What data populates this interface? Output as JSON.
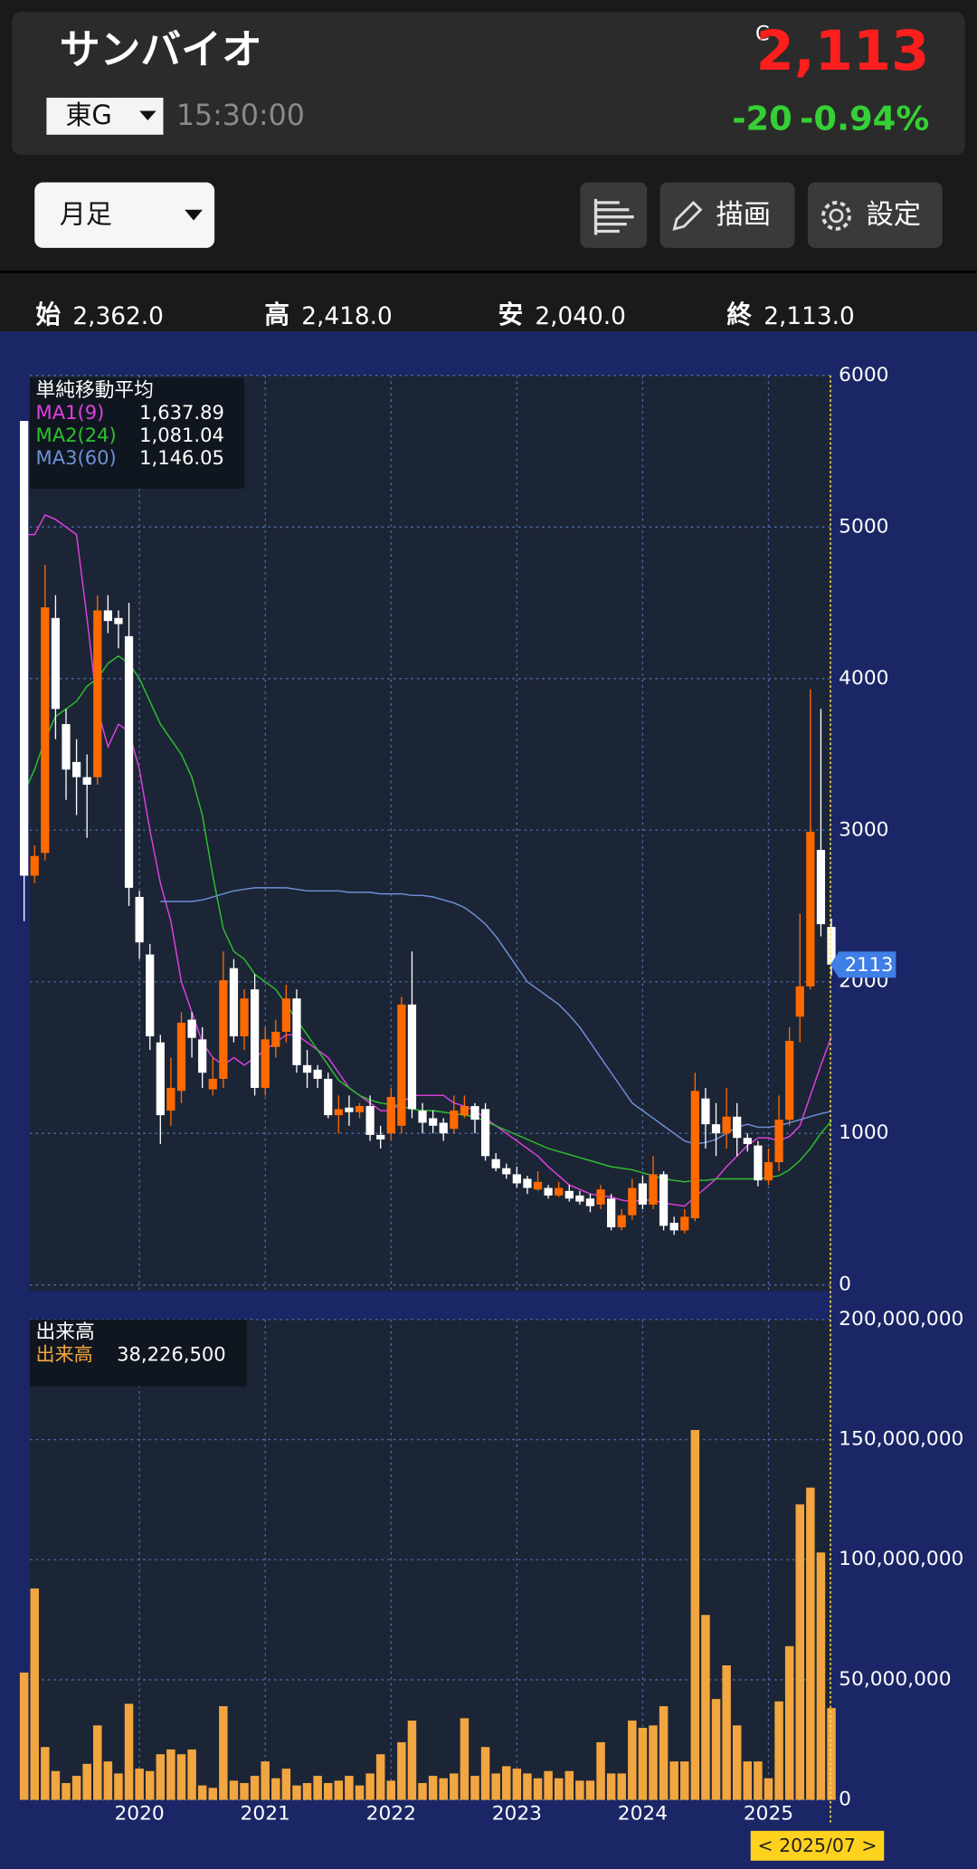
{
  "header": {
    "name": "サンバイオ",
    "market": "東G",
    "time": "15:30:00",
    "close_mark": "C",
    "price": "2,113",
    "change": "-20",
    "change_pct": "-0.94%"
  },
  "toolbar": {
    "period": "月足",
    "draw": "描画",
    "settings": "設定"
  },
  "ohlc": [
    {
      "label": "始",
      "value": "2,362.0"
    },
    {
      "label": "高",
      "value": "2,418.0"
    },
    {
      "label": "安",
      "value": "2,040.0"
    },
    {
      "label": "終",
      "value": "2,113.0"
    }
  ],
  "chart_data": [
    {
      "type": "candlestick",
      "legend_title": "単純移動平均",
      "up_color": "#ff6a00",
      "down_color": "#ffffff",
      "grid": true,
      "open": [
        5700,
        2700,
        2850,
        4400,
        3700,
        3450,
        3350,
        3350,
        4450,
        4400,
        4280,
        2560,
        2180,
        1600,
        1150,
        1280,
        1750,
        1620,
        1290,
        1360,
        2090,
        1640,
        1950,
        1300,
        1570,
        1670,
        1890,
        1450,
        1420,
        1360,
        1120,
        1170,
        1140,
        1180,
        990,
        1000,
        1050,
        1850,
        1150,
        1100,
        1070,
        1030,
        1120,
        1180,
        1160,
        830,
        770,
        730,
        700,
        630,
        640,
        590,
        620,
        590,
        570,
        530,
        570,
        380,
        460,
        670,
        530,
        730,
        410,
        360,
        440,
        1230,
        1060,
        1000,
        1110,
        970,
        920,
        690,
        810,
        1090,
        1770,
        1970,
        2870,
        2362
      ],
      "high": [
        5700,
        2900,
        4750,
        4550,
        3800,
        3600,
        3500,
        4550,
        4550,
        4450,
        4500,
        2600,
        2250,
        1650,
        1500,
        1800,
        1800,
        1700,
        1500,
        2200,
        2150,
        1950,
        2050,
        1700,
        1750,
        1980,
        1950,
        1550,
        1450,
        1400,
        1250,
        1250,
        1200,
        1250,
        1050,
        1300,
        1900,
        2200,
        1200,
        1150,
        1100,
        1250,
        1250,
        1200,
        1200,
        870,
        800,
        780,
        720,
        750,
        660,
        680,
        660,
        620,
        600,
        660,
        600,
        500,
        700,
        720,
        850,
        750,
        450,
        500,
        1400,
        1300,
        1200,
        1300,
        1200,
        1000,
        950,
        900,
        1250,
        1700,
        2450,
        3930,
        3800,
        2418
      ],
      "low": [
        2400,
        2650,
        2800,
        3600,
        3200,
        3100,
        2950,
        3300,
        4300,
        4200,
        2500,
        2150,
        1550,
        930,
        1050,
        1200,
        1500,
        1300,
        1250,
        1300,
        1600,
        1550,
        1250,
        1250,
        1500,
        1600,
        1400,
        1300,
        1300,
        1100,
        1000,
        1050,
        1100,
        950,
        900,
        950,
        1000,
        1100,
        1000,
        1000,
        950,
        1000,
        1100,
        1000,
        820,
        750,
        700,
        640,
        600,
        620,
        570,
        580,
        550,
        530,
        480,
        500,
        360,
        360,
        430,
        500,
        500,
        360,
        330,
        340,
        420,
        900,
        850,
        900,
        850,
        880,
        650,
        660,
        750,
        1050,
        1600,
        1950,
        2300,
        2040
      ],
      "close": [
        2700,
        2830,
        4470,
        3800,
        3400,
        3350,
        3300,
        4450,
        4380,
        4360,
        2620,
        2260,
        1640,
        1120,
        1300,
        1730,
        1630,
        1400,
        1360,
        2010,
        1640,
        1890,
        1300,
        1620,
        1670,
        1890,
        1450,
        1400,
        1360,
        1120,
        1160,
        1140,
        1180,
        990,
        960,
        1240,
        1850,
        1160,
        1070,
        1050,
        1000,
        1150,
        1180,
        1090,
        850,
        770,
        730,
        670,
        640,
        680,
        590,
        640,
        570,
        550,
        520,
        630,
        380,
        460,
        640,
        530,
        730,
        390,
        360,
        450,
        1280,
        1060,
        1000,
        1110,
        970,
        930,
        690,
        810,
        1090,
        1610,
        1970,
        2990,
        2380,
        2113
      ],
      "series": [
        {
          "name": "MA1(9)",
          "color": "#e040e0",
          "last_label": "1,637.89",
          "values": [
            4950,
            4950,
            5080,
            5050,
            5000,
            4950,
            4400,
            3800,
            3550,
            3700,
            3650,
            3400,
            3000,
            2650,
            2400,
            2000,
            1800,
            1600,
            1500,
            1450,
            1500,
            1450,
            1500,
            1550,
            1600,
            1650,
            1650,
            1600,
            1550,
            1500,
            1400,
            1300,
            1250,
            1200,
            1150,
            1150,
            1200,
            1250,
            1250,
            1250,
            1250,
            1200,
            1180,
            1150,
            1100,
            1050,
            1000,
            950,
            900,
            850,
            780,
            720,
            660,
            630,
            600,
            590,
            580,
            560,
            550,
            560,
            560,
            540,
            530,
            520,
            580,
            640,
            700,
            780,
            850,
            920,
            970,
            970,
            950,
            980,
            1050,
            1250,
            1450,
            1637.89
          ]
        },
        {
          "name": "MA2(24)",
          "color": "#2ec02e",
          "last_label": "1,081.04",
          "values": [
            3250,
            3400,
            3600,
            3750,
            3800,
            3850,
            3950,
            4000,
            4100,
            4150,
            4100,
            4000,
            3850,
            3700,
            3600,
            3500,
            3350,
            3100,
            2700,
            2350,
            2200,
            2150,
            2050,
            2000,
            1950,
            1850,
            1750,
            1650,
            1550,
            1450,
            1350,
            1300,
            1250,
            1220,
            1200,
            1190,
            1180,
            1160,
            1150,
            1150,
            1140,
            1130,
            1120,
            1110,
            1080,
            1050,
            1020,
            990,
            960,
            930,
            900,
            880,
            860,
            840,
            820,
            800,
            780,
            770,
            760,
            740,
            720,
            700,
            690,
            680,
            690,
            690,
            700,
            700,
            700,
            700,
            700,
            710,
            720,
            760,
            820,
            900,
            1000,
            1081.04
          ]
        },
        {
          "name": "MA3(60)",
          "color": "#6f8fd8",
          "last_label": "1,146.05",
          "values": [
            null,
            null,
            null,
            null,
            null,
            null,
            null,
            null,
            null,
            null,
            null,
            null,
            null,
            2530,
            2530,
            2530,
            2530,
            2540,
            2560,
            2580,
            2600,
            2610,
            2620,
            2620,
            2620,
            2620,
            2610,
            2600,
            2600,
            2600,
            2600,
            2590,
            2590,
            2590,
            2580,
            2580,
            2580,
            2570,
            2570,
            2560,
            2540,
            2520,
            2490,
            2440,
            2380,
            2300,
            2200,
            2100,
            2000,
            1950,
            1900,
            1850,
            1780,
            1700,
            1600,
            1500,
            1400,
            1300,
            1200,
            1150,
            1100,
            1050,
            1000,
            950,
            930,
            940,
            960,
            1000,
            1040,
            1060,
            1040,
            1040,
            1050,
            1070,
            1090,
            1110,
            1130,
            1146.05
          ]
        }
      ],
      "ylim": [
        0,
        6000
      ],
      "yticks": [
        0,
        1000,
        2000,
        3000,
        4000,
        5000,
        6000
      ],
      "current_price": 2113
    },
    {
      "type": "bar",
      "legend_title": "出来高",
      "grid": true,
      "series": [
        {
          "name": "出来高",
          "color": "#f2a640",
          "last_label": "38,226,500",
          "values": [
            53000000,
            88000000,
            22000000,
            12000000,
            7000000,
            10000000,
            15000000,
            31000000,
            16000000,
            11000000,
            40000000,
            13000000,
            12000000,
            19000000,
            21000000,
            19000000,
            21000000,
            6000000,
            5000000,
            39000000,
            8000000,
            7000000,
            10000000,
            16000000,
            9000000,
            13000000,
            6000000,
            7000000,
            10000000,
            7000000,
            8000000,
            10000000,
            6000000,
            11000000,
            19000000,
            8000000,
            24000000,
            33000000,
            7000000,
            10000000,
            9000000,
            11000000,
            34000000,
            10000000,
            22000000,
            11000000,
            14000000,
            13000000,
            11000000,
            9000000,
            12000000,
            9000000,
            12000000,
            8000000,
            8000000,
            24000000,
            11000000,
            11000000,
            33000000,
            30000000,
            31000000,
            39000000,
            16000000,
            16000000,
            154000000,
            77000000,
            42000000,
            56000000,
            31000000,
            16000000,
            16000000,
            9000000,
            41000000,
            64000000,
            123000000,
            130000000,
            103000000,
            38226500
          ]
        }
      ],
      "ylim": [
        0,
        200000000
      ],
      "yticks": [
        0,
        {
          "value": 50000000,
          "label": "50,000,000"
        },
        {
          "value": 100000000,
          "label": "100,000,000"
        },
        {
          "value": 150000000,
          "label": "150,000,000"
        },
        {
          "value": 200000000,
          "label": "200,000,000"
        }
      ],
      "xticks": [
        {
          "value": 11,
          "label": "2020"
        },
        {
          "value": 23,
          "label": "2021"
        },
        {
          "value": 35,
          "label": "2022"
        },
        {
          "value": 47,
          "label": "2023"
        },
        {
          "value": 59,
          "label": "2024"
        },
        {
          "value": 71,
          "label": "2025"
        }
      ],
      "cursor_label": "< 2025/07 >"
    }
  ]
}
